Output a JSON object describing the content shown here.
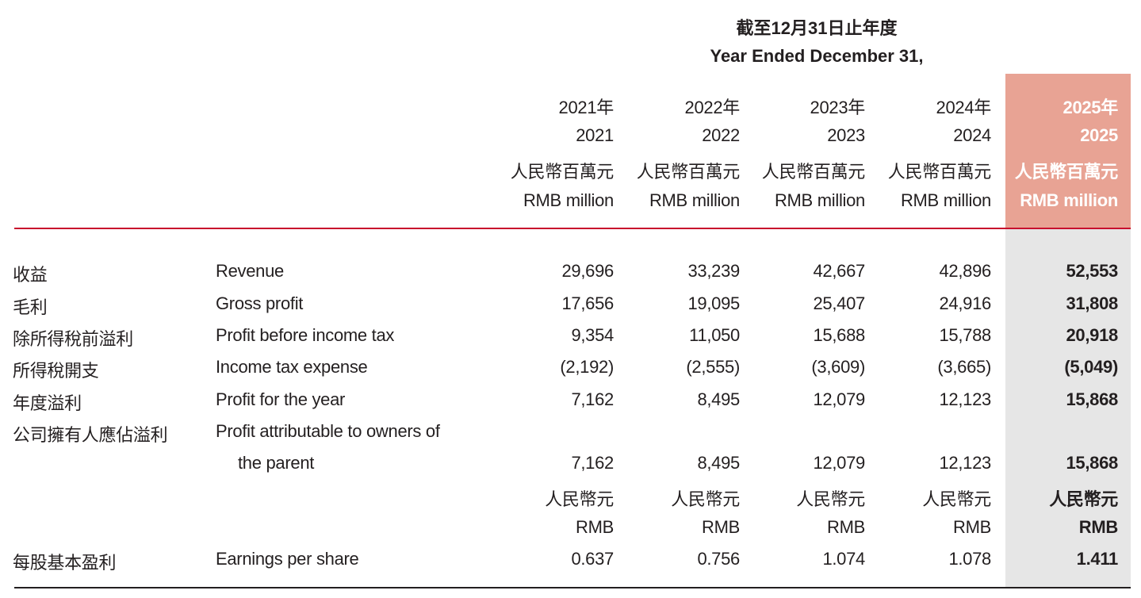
{
  "header": {
    "period_cn": "截至12月31日止年度",
    "period_en": "Year Ended December 31,"
  },
  "columns": [
    {
      "year_cn": "2021年",
      "year": "2021",
      "unit_cn": "人民幣百萬元",
      "unit_en": "RMB million"
    },
    {
      "year_cn": "2022年",
      "year": "2022",
      "unit_cn": "人民幣百萬元",
      "unit_en": "RMB million"
    },
    {
      "year_cn": "2023年",
      "year": "2023",
      "unit_cn": "人民幣百萬元",
      "unit_en": "RMB million"
    },
    {
      "year_cn": "2024年",
      "year": "2024",
      "unit_cn": "人民幣百萬元",
      "unit_en": "RMB million"
    },
    {
      "year_cn": "2025年",
      "year": "2025",
      "unit_cn": "人民幣百萬元",
      "unit_en": "RMB million"
    }
  ],
  "rows": [
    {
      "label_cn": "收益",
      "label_en": "Revenue",
      "values": [
        "29,696",
        "33,239",
        "42,667",
        "42,896",
        "52,553"
      ]
    },
    {
      "label_cn": "毛利",
      "label_en": "Gross profit",
      "values": [
        "17,656",
        "19,095",
        "25,407",
        "24,916",
        "31,808"
      ]
    },
    {
      "label_cn": "除所得稅前溢利",
      "label_en": "Profit before income tax",
      "values": [
        "9,354",
        "11,050",
        "15,688",
        "15,788",
        "20,918"
      ]
    },
    {
      "label_cn": "所得稅開支",
      "label_en": "Income tax expense",
      "values": [
        "(2,192)",
        "(2,555)",
        "(3,609)",
        "(3,665)",
        "(5,049)"
      ]
    },
    {
      "label_cn": "年度溢利",
      "label_en": "Profit for the year",
      "values": [
        "7,162",
        "8,495",
        "12,079",
        "12,123",
        "15,868"
      ]
    },
    {
      "label_cn": "公司擁有人應佔溢利",
      "label_en": "Profit attributable to owners of",
      "label_en_2": "the parent",
      "values": [
        "7,162",
        "8,495",
        "12,079",
        "12,123",
        "15,868"
      ]
    }
  ],
  "eps_units": {
    "unit_cn": [
      "人民幣元",
      "人民幣元",
      "人民幣元",
      "人民幣元",
      "人民幣元"
    ],
    "unit_en": [
      "RMB",
      "RMB",
      "RMB",
      "RMB",
      "RMB"
    ]
  },
  "eps": {
    "label_cn": "每股基本盈利",
    "label_en": "Earnings per share",
    "values": [
      "0.637",
      "0.756",
      "1.074",
      "1.078",
      "1.411"
    ]
  },
  "colors": {
    "highlight_header": "#e8a394",
    "highlight_column": "#e6e6e6",
    "rule_red": "#c8102e"
  }
}
